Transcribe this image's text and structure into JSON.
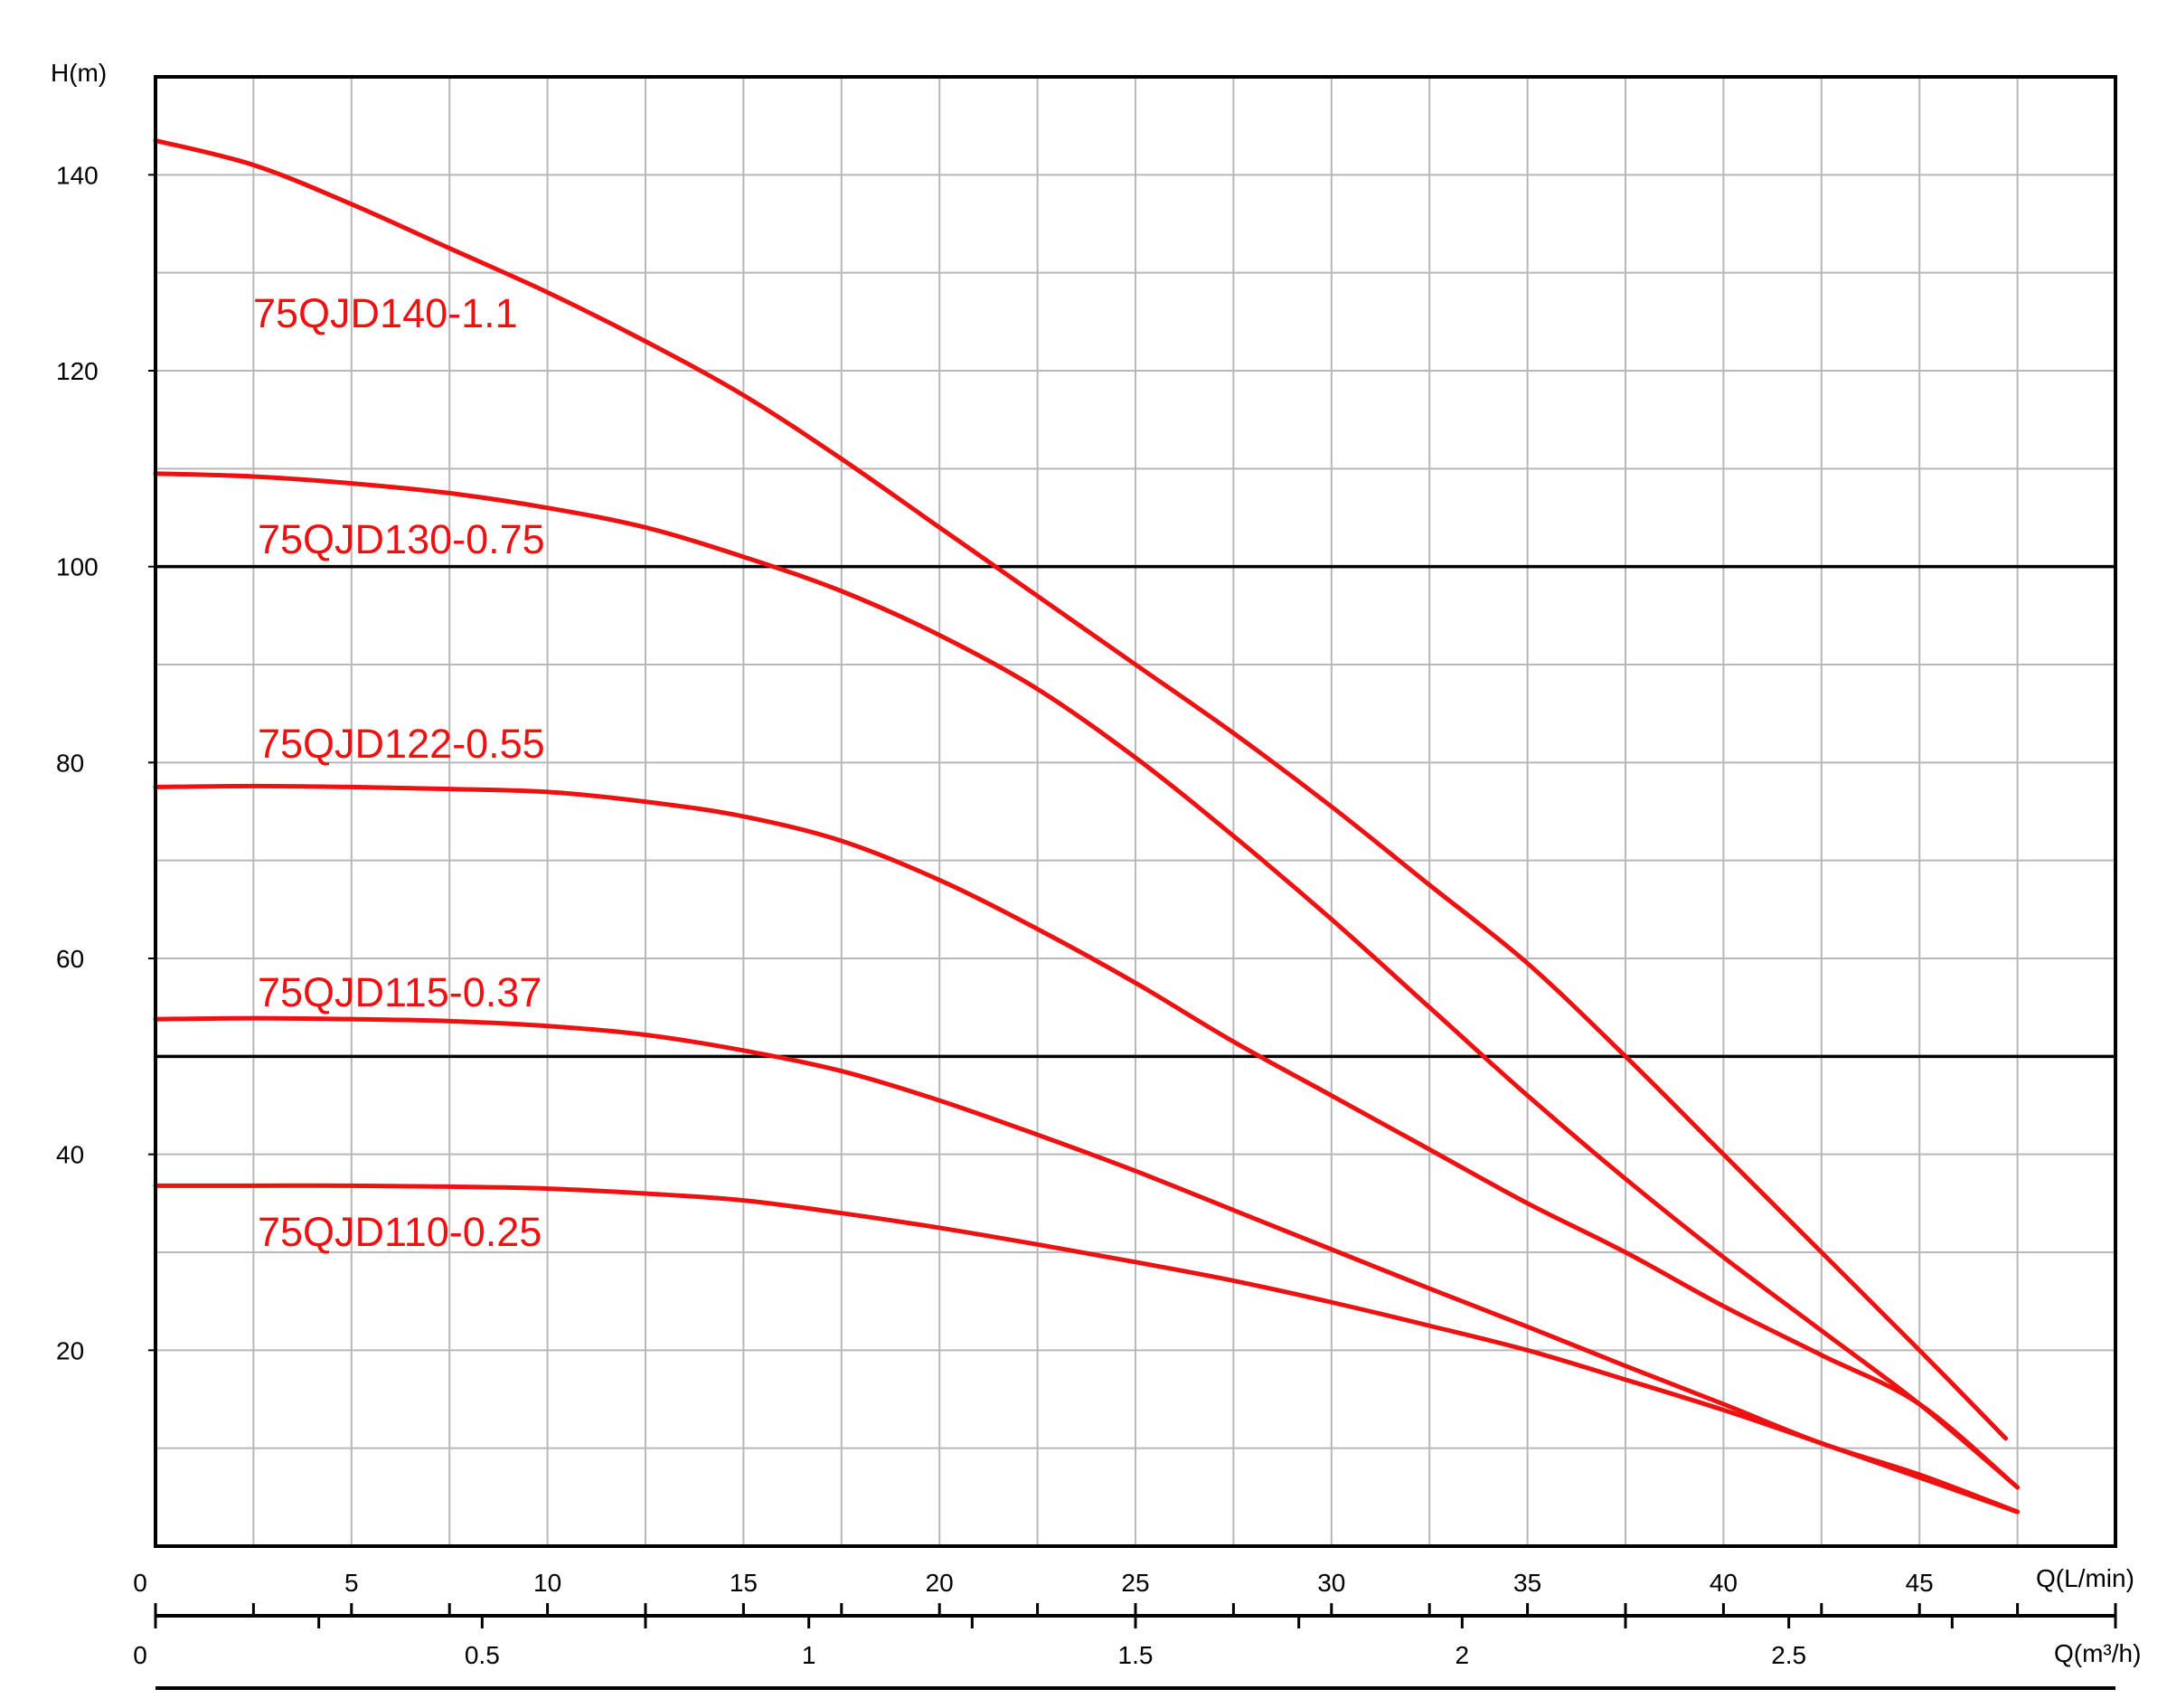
{
  "chart_data": {
    "type": "line",
    "y_axis": {
      "label": "H(m)",
      "range": [
        0,
        150
      ],
      "ticks": [
        20,
        40,
        60,
        80,
        100,
        120,
        140
      ],
      "grid_step": 10,
      "bold_lines": [
        50,
        100
      ]
    },
    "x_axis_primary": {
      "label": "Q(L/min)",
      "range": [
        0,
        50
      ],
      "ticks": [
        0,
        5,
        10,
        15,
        20,
        25,
        30,
        35,
        40,
        45
      ],
      "grid_step": 2.5
    },
    "x_axis_secondary": {
      "label": "Q(m³/h)",
      "range": [
        0,
        3
      ],
      "ticks": [
        0,
        0.5,
        1,
        1.5,
        2,
        2.5
      ],
      "tick_labels": [
        "0",
        "0.5",
        "1",
        "1.5",
        "2",
        "2.5"
      ],
      "minor_step": 0.25
    },
    "grid": true,
    "line_color": "#ee1111",
    "series": [
      {
        "name": "75QJD140-1.1",
        "x": [
          0,
          2.5,
          5,
          7.5,
          10,
          12.5,
          15,
          17.5,
          20,
          22.5,
          25,
          27.5,
          30,
          32.5,
          35,
          37.5,
          40,
          42.5,
          45,
          47.2
        ],
        "values": [
          143.5,
          141,
          137,
          132.5,
          128,
          123,
          117.5,
          111,
          104,
          97,
          90,
          83,
          75.5,
          67.5,
          59.5,
          50,
          40,
          30,
          20,
          11
        ]
      },
      {
        "name": "75QJD130-0.75",
        "x": [
          0,
          2.5,
          5,
          7.5,
          10,
          12.5,
          15,
          17.5,
          20,
          22.5,
          25,
          27.5,
          30,
          32.5,
          35,
          37.5,
          40,
          42.5,
          45,
          47.5
        ],
        "values": [
          109.5,
          109.2,
          108.5,
          107.5,
          106,
          104,
          101,
          97.5,
          93,
          87.5,
          80.5,
          72.5,
          64,
          55,
          46,
          37.5,
          29.5,
          22,
          14.5,
          6
        ]
      },
      {
        "name": "75QJD122-0.55",
        "x": [
          0,
          2.5,
          5,
          7.5,
          10,
          12.5,
          15,
          17.5,
          20,
          22.5,
          25,
          27.5,
          30,
          32.5,
          35,
          37.5,
          40,
          42.5,
          45,
          47.5
        ],
        "values": [
          77.5,
          77.6,
          77.5,
          77.3,
          77,
          76,
          74.5,
          72,
          68,
          63,
          57.5,
          51.5,
          46,
          40.5,
          35,
          30,
          24.5,
          19.5,
          14.5,
          6
        ]
      },
      {
        "name": "75QJD115-0.37",
        "x": [
          0,
          2.5,
          5,
          7.5,
          10,
          12.5,
          15,
          17.5,
          20,
          22.5,
          25,
          27.5,
          30,
          32.5,
          35,
          37.5,
          40,
          42.5,
          45,
          47.5
        ],
        "values": [
          53.8,
          53.9,
          53.8,
          53.6,
          53.1,
          52.2,
          50.6,
          48.5,
          45.5,
          42,
          38.3,
          34.3,
          30.3,
          26.3,
          22.4,
          18.4,
          14.5,
          10.5,
          7.3,
          3.5
        ]
      },
      {
        "name": "75QJD110-0.25",
        "x": [
          0,
          2.5,
          5,
          7.5,
          10,
          12.5,
          15,
          17.5,
          20,
          22.5,
          25,
          27.5,
          30,
          32.5,
          35,
          37.5,
          40,
          42.5,
          45,
          47.5
        ],
        "values": [
          36.8,
          36.8,
          36.8,
          36.7,
          36.5,
          36,
          35.3,
          34,
          32.5,
          30.8,
          29,
          27.1,
          24.9,
          22.5,
          20,
          17,
          13.9,
          10.5,
          7,
          3.5
        ]
      }
    ]
  }
}
